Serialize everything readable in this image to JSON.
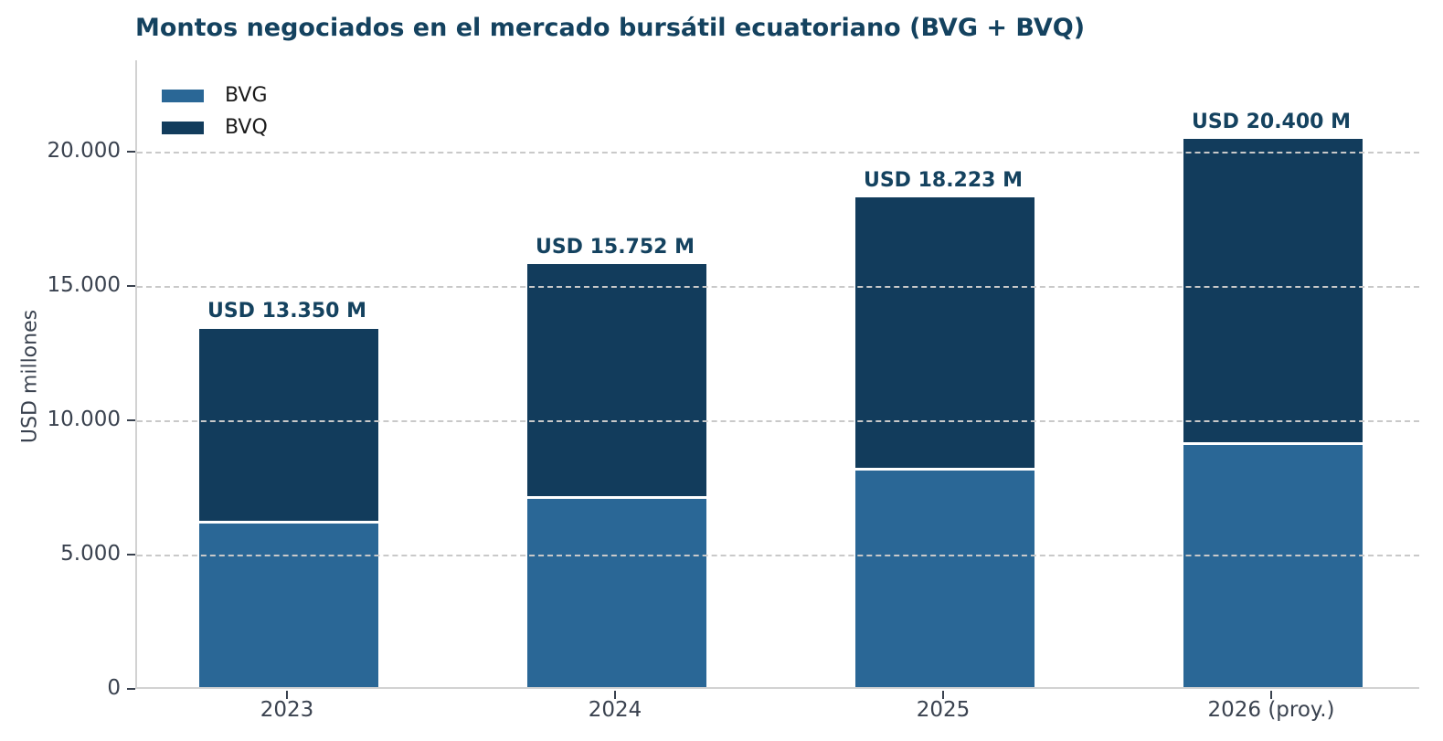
{
  "title": "Montos negociados en el mercado bursátil ecuatoriano (BVG + BVQ)",
  "colors": {
    "bvg": "#2A6796",
    "bvq": "#123C5C",
    "title_text": "#14425F",
    "total_label_text": "#14425F",
    "tick_text": "#3A424F",
    "gridline": "#c9c9c9",
    "spine": "#d2d2d2",
    "background": "#ffffff"
  },
  "chart_data": {
    "type": "bar",
    "stacked": true,
    "title": "Montos negociados en el mercado bursátil ecuatoriano (BVG + BVQ)",
    "xlabel": "",
    "ylabel": "USD millones",
    "categories": [
      "2023",
      "2024",
      "2025",
      "2026 (proy.)"
    ],
    "series": [
      {
        "name": "BVG",
        "color": "#2A6796",
        "values": [
          6100,
          7000,
          8050,
          9000
        ]
      },
      {
        "name": "BVQ",
        "color": "#123C5C",
        "values": [
          7250,
          8752,
          10173,
          11400
        ]
      }
    ],
    "totals": [
      13350,
      15752,
      18223,
      20400
    ],
    "total_labels": [
      "USD 13.350 M",
      "USD 15.752 M",
      "USD 18.223 M",
      "USD 20.400 M"
    ],
    "yticks": [
      0,
      5000,
      10000,
      15000,
      20000
    ],
    "ytick_labels": [
      "0",
      "5.000",
      "10.000",
      "15.000",
      "20.000"
    ],
    "ylim": [
      0,
      23400
    ],
    "grid": "horizontal dashed, drawn over bars",
    "legend_position": "upper-left inside plot, no frame",
    "note": "segment values (BVG/BVQ split) estimated from pixel heights; totals are labeled on chart"
  }
}
